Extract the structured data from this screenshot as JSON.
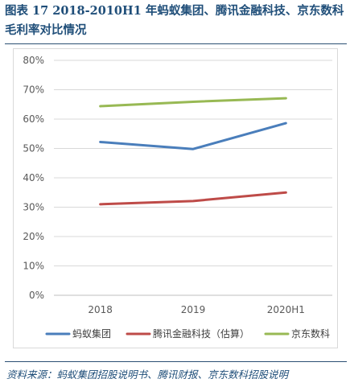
{
  "title": "图表 17    2018-2010H1 年蚂蚁集团、腾讯金融科技、京东数科毛利率对比情况",
  "source": "资料来源：蚂蚁集团招股说明书、腾讯财报、京东数科招股说明",
  "chart_data": {
    "type": "line",
    "title": "",
    "xlabel": "",
    "ylabel": "",
    "categories": [
      "2018",
      "2019",
      "2020H1"
    ],
    "ylim": [
      0,
      80
    ],
    "yticks": [
      "0%",
      "10%",
      "20%",
      "30%",
      "40%",
      "50%",
      "60%",
      "70%",
      "80%"
    ],
    "grid": true,
    "legend_position": "bottom",
    "series": [
      {
        "name": "蚂蚁集团",
        "color": "#4a7ebb",
        "values": [
          52.2,
          49.8,
          58.6
        ]
      },
      {
        "name": "腾讯金融科技（估算）",
        "color": "#be4b48",
        "values": [
          31.0,
          32.1,
          35.0
        ]
      },
      {
        "name": "京东数科",
        "color": "#98b954",
        "values": [
          64.4,
          65.9,
          67.1
        ]
      }
    ]
  }
}
